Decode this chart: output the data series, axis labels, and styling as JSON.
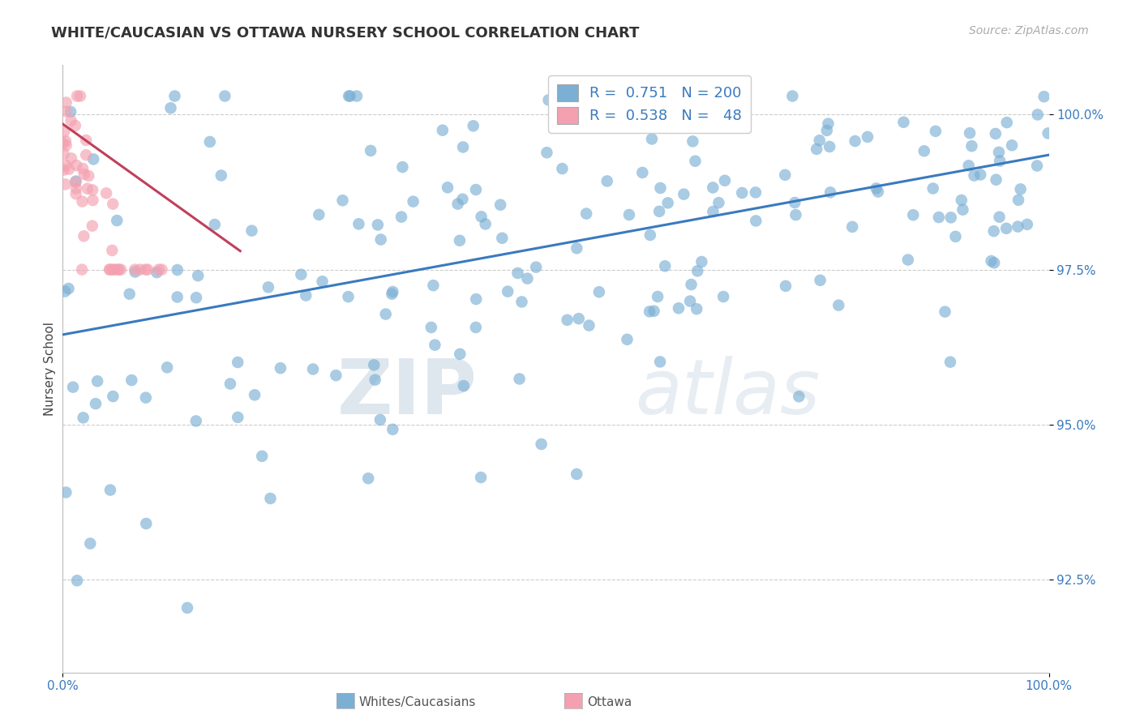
{
  "title": "WHITE/CAUCASIAN VS OTTAWA NURSERY SCHOOL CORRELATION CHART",
  "source_text": "Source: ZipAtlas.com",
  "ylabel": "Nursery School",
  "title_fontsize": 13,
  "source_fontsize": 10,
  "background_color": "#ffffff",
  "blue_color": "#7bafd4",
  "blue_line_color": "#3a7abf",
  "pink_color": "#f4a0b0",
  "pink_line_color": "#c0405a",
  "legend_blue_R": "0.751",
  "legend_blue_N": "200",
  "legend_pink_R": "0.538",
  "legend_pink_N": "48",
  "watermark_zip": "ZIP",
  "watermark_atlas": "atlas",
  "xmin": 0.0,
  "xmax": 1.0,
  "ymin": 0.91,
  "ymax": 1.008,
  "yticks": [
    0.925,
    0.95,
    0.975,
    1.0
  ],
  "ytick_labels": [
    "92.5%",
    "95.0%",
    "97.5%",
    "100.0%"
  ],
  "xticks": [
    0.0,
    1.0
  ],
  "xtick_labels": [
    "0.0%",
    "100.0%"
  ],
  "blue_trend_x": [
    0.0,
    1.0
  ],
  "blue_trend_y": [
    0.9645,
    0.9935
  ],
  "pink_trend_x": [
    0.0,
    0.18
  ],
  "pink_trend_y": [
    0.9985,
    0.978
  ]
}
